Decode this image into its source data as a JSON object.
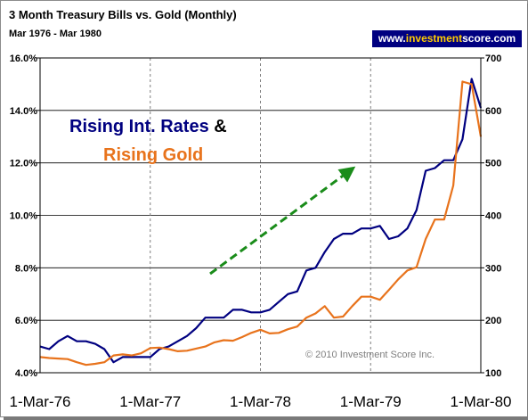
{
  "title": "3 Month Treasury Bills vs. Gold (Monthly)",
  "subtitle": "Mar 1976 - Mar 1980",
  "brand": {
    "prefix": "www.",
    "accent": "investment",
    "suffix": "score.com"
  },
  "annotation": {
    "line1_a": "Rising Int. Rates",
    "line1_b": " &",
    "line2": "Rising Gold"
  },
  "copyright": "© 2010 Investment Score Inc.",
  "colors": {
    "tbill": "#000080",
    "gold": "#e8731c",
    "arrow": "#1a8c1a",
    "brand_bg": "#000080",
    "brand_accent": "#ffcc00"
  },
  "chart_data": {
    "type": "line",
    "title": "3 Month Treasury Bills vs. Gold (Monthly)",
    "x_tick_labels": [
      "1-Mar-76",
      "1-Mar-77",
      "1-Mar-78",
      "1-Mar-79",
      "1-Mar-80"
    ],
    "x": [
      "Mar-76",
      "Apr-76",
      "May-76",
      "Jun-76",
      "Jul-76",
      "Aug-76",
      "Sep-76",
      "Oct-76",
      "Nov-76",
      "Dec-76",
      "Jan-77",
      "Feb-77",
      "Mar-77",
      "Apr-77",
      "May-77",
      "Jun-77",
      "Jul-77",
      "Aug-77",
      "Sep-77",
      "Oct-77",
      "Nov-77",
      "Dec-77",
      "Jan-78",
      "Feb-78",
      "Mar-78",
      "Apr-78",
      "May-78",
      "Jun-78",
      "Jul-78",
      "Aug-78",
      "Sep-78",
      "Oct-78",
      "Nov-78",
      "Dec-78",
      "Jan-79",
      "Feb-79",
      "Mar-79",
      "Apr-79",
      "May-79",
      "Jun-79",
      "Jul-79",
      "Aug-79",
      "Sep-79",
      "Oct-79",
      "Nov-79",
      "Dec-79",
      "Jan-80",
      "Feb-80",
      "Mar-80"
    ],
    "y_left": {
      "ticks": [
        "4.0%",
        "6.0%",
        "8.0%",
        "10.0%",
        "12.0%",
        "14.0%",
        "16.0%"
      ],
      "range": [
        4,
        16
      ]
    },
    "y_right": {
      "ticks": [
        "100",
        "200",
        "300",
        "400",
        "500",
        "600",
        "700"
      ],
      "range": [
        100,
        700
      ]
    },
    "grid": true,
    "series": [
      {
        "axis": "left",
        "values": [
          5.0,
          4.9,
          5.2,
          5.4,
          5.2,
          5.2,
          5.1,
          4.9,
          4.4,
          4.6,
          4.6,
          4.6,
          4.6,
          4.9,
          5.0,
          5.2,
          5.4,
          5.7,
          6.1,
          6.1,
          6.1,
          6.4,
          6.4,
          6.3,
          6.3,
          6.4,
          6.7,
          7.0,
          7.1,
          7.9,
          8.0,
          8.6,
          9.1,
          9.3,
          9.3,
          9.5,
          9.5,
          9.6,
          9.1,
          9.2,
          9.5,
          10.2,
          11.7,
          11.8,
          12.1,
          12.1,
          12.9,
          15.2,
          14.1
        ]
      },
      {
        "axis": "right",
        "values": [
          130,
          128,
          127,
          126,
          120,
          115,
          117,
          120,
          133,
          135,
          133,
          137,
          147,
          148,
          145,
          141,
          142,
          146,
          150,
          158,
          162,
          161,
          168,
          176,
          182,
          175,
          176,
          183,
          188,
          205,
          213,
          227,
          205,
          207,
          227,
          245,
          245,
          239,
          258,
          278,
          295,
          301,
          355,
          392,
          392,
          457,
          655,
          650,
          550
        ]
      }
    ]
  }
}
